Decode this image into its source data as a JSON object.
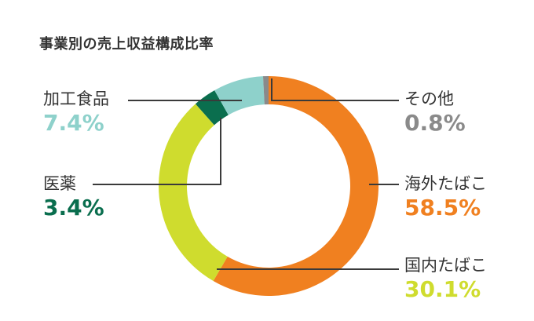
{
  "chart_data": {
    "type": "pie",
    "title": "事業別の売上収益構成比率",
    "legend": "callout labels",
    "slices": [
      {
        "name": "海外たばこ",
        "value_label": "58.5%",
        "value": 58.5,
        "color": "#f08020"
      },
      {
        "name": "国内たばこ",
        "value_label": "30.1%",
        "value": 30.1,
        "color": "#cfdc2e"
      },
      {
        "name": "医薬",
        "value_label": "3.4%",
        "value": 3.4,
        "color": "#0a6e4e"
      },
      {
        "name": "加工食品",
        "value_label": "7.4%",
        "value": 7.4,
        "color": "#8ed1cb"
      },
      {
        "name": "その他",
        "value_label": "0.8%",
        "value": 0.8,
        "color": "#8a8a8a"
      }
    ]
  }
}
